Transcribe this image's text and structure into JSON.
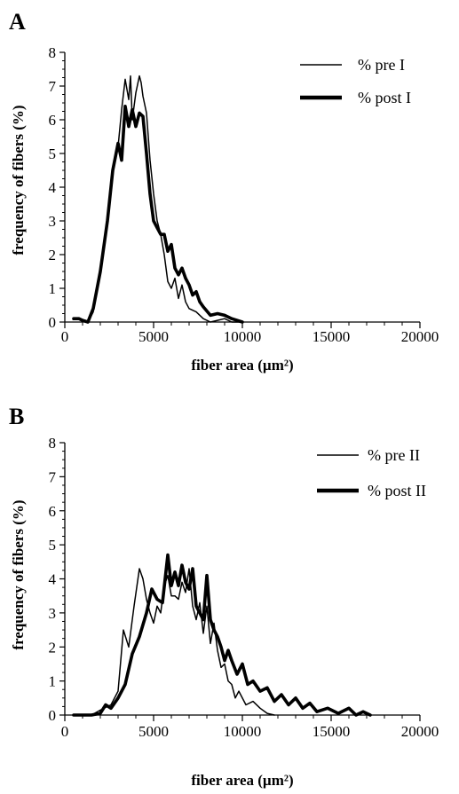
{
  "chart_data": [
    {
      "panel": "A",
      "type": "line",
      "xlabel": "fiber area (µm²)",
      "ylabel": "frequency of fibers (%)",
      "xlim": [
        0,
        20000
      ],
      "ylim": [
        0,
        8
      ],
      "x_ticks": [
        "0",
        "5000",
        "10000",
        "15000",
        "20000"
      ],
      "y_ticks": [
        "0",
        "1",
        "2",
        "3",
        "4",
        "5",
        "6",
        "7",
        "8"
      ],
      "legend_placement": "top-right",
      "series": [
        {
          "name": "% pre I",
          "style": "thin",
          "x": [
            500,
            800,
            1000,
            1300,
            1600,
            2000,
            2400,
            2800,
            3000,
            3200,
            3400,
            3600,
            3700,
            3800,
            4000,
            4200,
            4300,
            4400,
            4600,
            4800,
            5000,
            5200,
            5400,
            5600,
            5800,
            6000,
            6200,
            6400,
            6600,
            6800,
            7000,
            7400,
            7800,
            8200,
            8600,
            9000,
            9400,
            10000
          ],
          "values": [
            0.1,
            0.1,
            0.05,
            0.0,
            0.3,
            1.5,
            3.0,
            4.8,
            5.2,
            6.3,
            7.2,
            6.6,
            7.3,
            6.0,
            6.8,
            7.3,
            7.1,
            6.7,
            6.2,
            4.8,
            3.8,
            3.0,
            2.6,
            2.0,
            1.2,
            1.0,
            1.3,
            0.7,
            1.1,
            0.6,
            0.4,
            0.3,
            0.1,
            0.0,
            0.05,
            0.1,
            0.0,
            0.0
          ]
        },
        {
          "name": "% post I",
          "style": "thick",
          "x": [
            500,
            800,
            1000,
            1300,
            1600,
            2000,
            2400,
            2700,
            3000,
            3200,
            3400,
            3600,
            3800,
            4000,
            4200,
            4400,
            4600,
            4800,
            5000,
            5200,
            5400,
            5600,
            5800,
            6000,
            6200,
            6400,
            6600,
            6800,
            7000,
            7200,
            7400,
            7600,
            7800,
            8200,
            8600,
            9000,
            9400,
            10000
          ],
          "values": [
            0.1,
            0.1,
            0.05,
            0.0,
            0.4,
            1.5,
            3.0,
            4.5,
            5.3,
            4.8,
            6.4,
            5.8,
            6.3,
            5.8,
            6.2,
            6.1,
            5.0,
            3.8,
            3.0,
            2.8,
            2.6,
            2.6,
            2.1,
            2.3,
            1.6,
            1.4,
            1.6,
            1.3,
            1.1,
            0.8,
            0.9,
            0.6,
            0.45,
            0.2,
            0.25,
            0.2,
            0.1,
            0.0
          ]
        }
      ]
    },
    {
      "panel": "B",
      "type": "line",
      "xlabel": "fiber area (µm²)",
      "ylabel": "frequency of fibers (%)",
      "xlim": [
        0,
        20000
      ],
      "ylim": [
        0,
        8
      ],
      "x_ticks": [
        "0",
        "5000",
        "10000",
        "15000",
        "20000"
      ],
      "y_ticks": [
        "0",
        "1",
        "2",
        "3",
        "4",
        "5",
        "6",
        "7",
        "8"
      ],
      "legend_placement": "top-right",
      "series": [
        {
          "name": "% pre II",
          "style": "thin",
          "x": [
            500,
            1500,
            2200,
            2600,
            3000,
            3300,
            3600,
            3900,
            4200,
            4400,
            4600,
            4800,
            5000,
            5200,
            5400,
            5600,
            5800,
            6000,
            6200,
            6400,
            6600,
            6800,
            7000,
            7200,
            7400,
            7600,
            7800,
            8000,
            8200,
            8400,
            8600,
            8800,
            9000,
            9200,
            9400,
            9600,
            9800,
            10200,
            10600,
            11000,
            11400,
            11800
          ],
          "values": [
            0.0,
            0.0,
            0.2,
            0.3,
            0.7,
            2.5,
            2.0,
            3.2,
            4.3,
            4.0,
            3.4,
            3.0,
            2.7,
            3.2,
            3.0,
            3.8,
            4.1,
            3.5,
            3.5,
            3.4,
            3.9,
            3.6,
            4.3,
            3.2,
            2.8,
            3.3,
            2.4,
            3.2,
            2.1,
            2.7,
            1.9,
            1.4,
            1.5,
            1.0,
            0.9,
            0.5,
            0.7,
            0.3,
            0.4,
            0.2,
            0.05,
            0.0
          ]
        },
        {
          "name": "% post II",
          "style": "thick",
          "x": [
            500,
            1500,
            2000,
            2300,
            2600,
            3000,
            3400,
            3800,
            4200,
            4600,
            4900,
            5200,
            5500,
            5800,
            6000,
            6200,
            6400,
            6600,
            6800,
            7000,
            7200,
            7400,
            7600,
            7800,
            8000,
            8200,
            8400,
            8600,
            8800,
            9000,
            9200,
            9400,
            9700,
            10000,
            10300,
            10600,
            11000,
            11400,
            11800,
            12200,
            12600,
            13000,
            13400,
            13800,
            14200,
            14800,
            15400,
            16000,
            16400,
            16800,
            17200
          ],
          "values": [
            0.0,
            0.0,
            0.05,
            0.3,
            0.2,
            0.5,
            0.9,
            1.8,
            2.3,
            3.0,
            3.7,
            3.4,
            3.3,
            4.7,
            3.8,
            4.2,
            3.8,
            4.4,
            3.9,
            3.7,
            4.3,
            3.2,
            3.0,
            2.8,
            4.1,
            2.8,
            2.5,
            2.3,
            2.0,
            1.6,
            1.9,
            1.6,
            1.2,
            1.5,
            0.9,
            1.0,
            0.7,
            0.8,
            0.4,
            0.6,
            0.3,
            0.5,
            0.2,
            0.35,
            0.1,
            0.2,
            0.05,
            0.2,
            0.0,
            0.1,
            0.0
          ]
        }
      ]
    }
  ]
}
